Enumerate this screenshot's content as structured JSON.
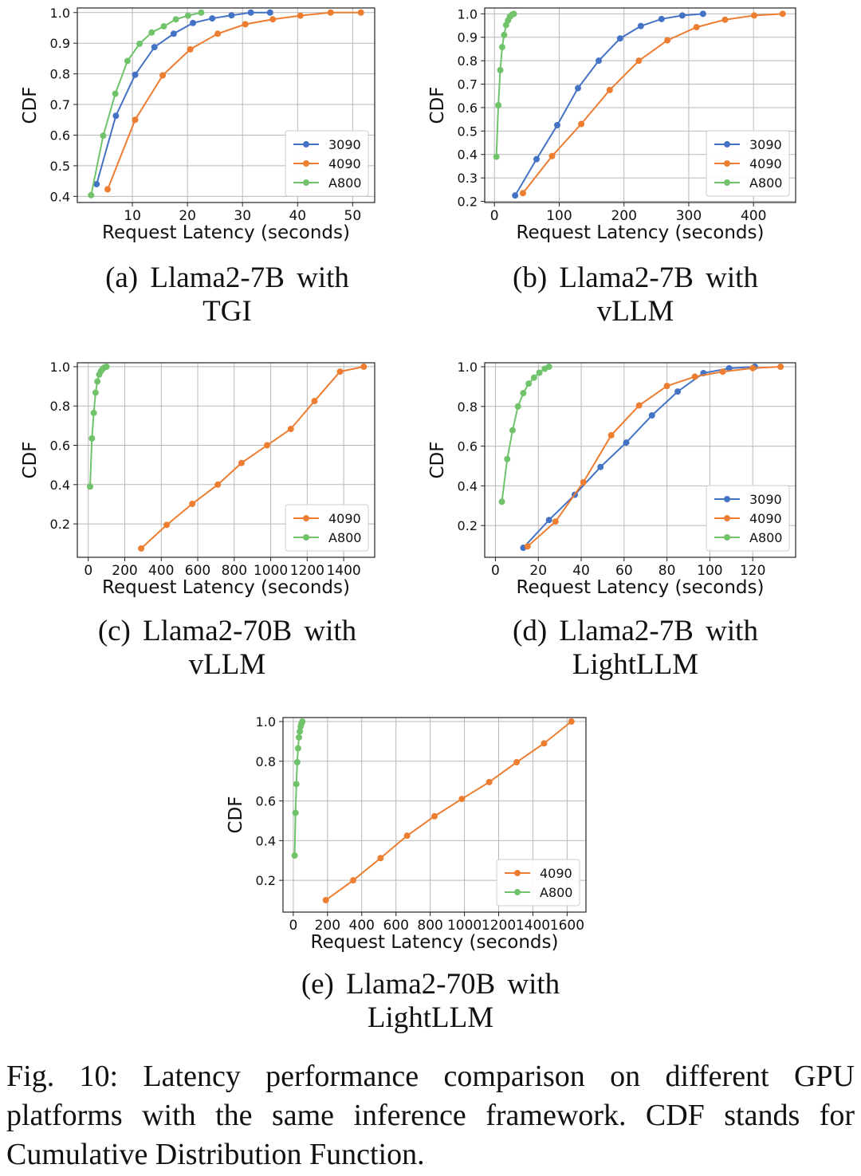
{
  "chart_data": [
    {
      "id": "a",
      "type": "line",
      "caption": "(a) Llama2-7B with TGI",
      "xlabel": "Request Latency (seconds)",
      "ylabel": "CDF",
      "xlim": [
        0,
        54
      ],
      "ylim": [
        0.38,
        1.015
      ],
      "xticks": [
        10,
        20,
        30,
        40,
        50
      ],
      "yticks": [
        0.4,
        0.5,
        0.6,
        0.7,
        0.8,
        0.9,
        1.0
      ],
      "grid": true,
      "legend": "lower-right",
      "series": [
        {
          "name": "3090",
          "color": "#4472c4",
          "x": [
            3.5,
            7,
            10.5,
            14,
            17.5,
            21,
            24.5,
            28,
            31.5,
            35
          ],
          "y": [
            0.44,
            0.663,
            0.797,
            0.887,
            0.931,
            0.966,
            0.981,
            0.991,
            1.0,
            1.0
          ]
        },
        {
          "name": "4090",
          "color": "#ed7d31",
          "x": [
            5.5,
            10.5,
            15.5,
            20.5,
            25.5,
            30.5,
            35.5,
            40.5,
            46,
            51.5
          ],
          "y": [
            0.423,
            0.65,
            0.795,
            0.88,
            0.931,
            0.962,
            0.978,
            0.99,
            1.0,
            1.0
          ]
        },
        {
          "name": "A800",
          "color": "#70c36a",
          "x": [
            2.5,
            4.7,
            6.9,
            9.1,
            11.3,
            13.5,
            15.7,
            17.9,
            20.1,
            22.5
          ],
          "y": [
            0.404,
            0.598,
            0.735,
            0.842,
            0.898,
            0.935,
            0.955,
            0.978,
            0.99,
            1.0
          ]
        }
      ]
    },
    {
      "id": "b",
      "type": "line",
      "caption": "(b) Llama2-7B with vLLM",
      "xlabel": "Request Latency (seconds)",
      "ylabel": "CDF",
      "xlim": [
        -15,
        465
      ],
      "ylim": [
        0.195,
        1.025
      ],
      "xticks": [
        0,
        100,
        200,
        300,
        400
      ],
      "yticks": [
        0.2,
        0.3,
        0.4,
        0.5,
        0.6,
        0.7,
        0.8,
        0.9,
        1.0
      ],
      "grid": true,
      "legend": "lower-right",
      "series": [
        {
          "name": "3090",
          "color": "#4472c4",
          "x": [
            32,
            65,
            97,
            129,
            161,
            194,
            226,
            258,
            290,
            322
          ],
          "y": [
            0.225,
            0.38,
            0.525,
            0.683,
            0.8,
            0.895,
            0.948,
            0.978,
            0.993,
            1.0
          ]
        },
        {
          "name": "4090",
          "color": "#ed7d31",
          "x": [
            44,
            89,
            134,
            178,
            223,
            267,
            312,
            356,
            401,
            445
          ],
          "y": [
            0.235,
            0.393,
            0.53,
            0.675,
            0.8,
            0.887,
            0.943,
            0.975,
            0.993,
            1.0
          ]
        },
        {
          "name": "A800",
          "color": "#70c36a",
          "x": [
            3,
            6,
            9,
            12,
            15,
            18,
            21,
            24,
            27,
            30
          ],
          "y": [
            0.39,
            0.61,
            0.76,
            0.858,
            0.91,
            0.952,
            0.972,
            0.988,
            0.996,
            1.0
          ]
        }
      ]
    },
    {
      "id": "c",
      "type": "line",
      "caption": "(c) Llama2-70B with vLLM",
      "xlabel": "Request Latency (seconds)",
      "ylabel": "CDF",
      "xlim": [
        -60,
        1570
      ],
      "ylim": [
        0.03,
        1.02
      ],
      "xticks": [
        0,
        200,
        400,
        600,
        800,
        1000,
        1200,
        1400
      ],
      "yticks": [
        0.2,
        0.4,
        0.6,
        0.8,
        1.0
      ],
      "grid": true,
      "legend": "lower-right",
      "series": [
        {
          "name": "4090",
          "color": "#ed7d31",
          "x": [
            290,
            430,
            570,
            710,
            840,
            980,
            1110,
            1240,
            1380,
            1510
          ],
          "y": [
            0.075,
            0.195,
            0.302,
            0.4,
            0.51,
            0.6,
            0.683,
            0.825,
            0.975,
            1.0
          ]
        },
        {
          "name": "A800",
          "color": "#70c36a",
          "x": [
            10,
            20,
            30,
            40,
            50,
            60,
            70,
            80,
            90,
            100
          ],
          "y": [
            0.39,
            0.635,
            0.765,
            0.868,
            0.925,
            0.96,
            0.978,
            0.99,
            0.997,
            1.0
          ]
        }
      ]
    },
    {
      "id": "d",
      "type": "line",
      "caption": "(d) Llama2-7B with LightLLM",
      "xlabel": "Request Latency (seconds)",
      "ylabel": "CDF",
      "xlim": [
        -5,
        140
      ],
      "ylim": [
        0.04,
        1.02
      ],
      "xticks": [
        0,
        20,
        40,
        60,
        80,
        100,
        120
      ],
      "yticks": [
        0.2,
        0.4,
        0.6,
        0.8,
        1.0
      ],
      "grid": true,
      "legend": "lower-right",
      "series": [
        {
          "name": "3090",
          "color": "#4472c4",
          "x": [
            13,
            25,
            37,
            49,
            61,
            73,
            85,
            97,
            109,
            121
          ],
          "y": [
            0.088,
            0.228,
            0.355,
            0.495,
            0.618,
            0.755,
            0.875,
            0.968,
            0.992,
            1.0
          ]
        },
        {
          "name": "4090",
          "color": "#ed7d31",
          "x": [
            15,
            28,
            41,
            54,
            67,
            80,
            93,
            106,
            120,
            133
          ],
          "y": [
            0.095,
            0.22,
            0.418,
            0.655,
            0.805,
            0.903,
            0.95,
            0.975,
            0.993,
            1.0
          ]
        },
        {
          "name": "A800",
          "color": "#70c36a",
          "x": [
            3,
            5.5,
            8,
            10.5,
            13,
            15.5,
            18,
            20.5,
            23,
            25
          ],
          "y": [
            0.32,
            0.535,
            0.68,
            0.8,
            0.867,
            0.915,
            0.945,
            0.97,
            0.99,
            1.0
          ]
        }
      ]
    },
    {
      "id": "e",
      "type": "line",
      "caption": "(e) Llama2-70B with LightLLM",
      "xlabel": "Request Latency (seconds)",
      "ylabel": "CDF",
      "xlim": [
        -60,
        1710
      ],
      "ylim": [
        0.04,
        1.02
      ],
      "xticks": [
        0,
        200,
        400,
        600,
        800,
        1000,
        1200,
        1400,
        1600
      ],
      "yticks": [
        0.2,
        0.4,
        0.6,
        0.8,
        1.0
      ],
      "grid": true,
      "legend": "lower-right",
      "series": [
        {
          "name": "4090",
          "color": "#ed7d31",
          "x": [
            190,
            350,
            510,
            665,
            825,
            985,
            1145,
            1305,
            1465,
            1625
          ],
          "y": [
            0.1,
            0.2,
            0.312,
            0.425,
            0.523,
            0.61,
            0.695,
            0.795,
            0.89,
            1.0
          ]
        },
        {
          "name": "A800",
          "color": "#70c36a",
          "x": [
            8,
            13,
            18,
            23,
            28,
            33,
            38,
            43,
            48,
            53
          ],
          "y": [
            0.325,
            0.54,
            0.685,
            0.795,
            0.865,
            0.92,
            0.95,
            0.975,
            0.99,
            1.0
          ]
        }
      ]
    }
  ],
  "figure_caption": "Fig. 10: Latency performance comparison on different GPU platforms with the same inference framework. CDF stands for Cumulative Distribution Function."
}
